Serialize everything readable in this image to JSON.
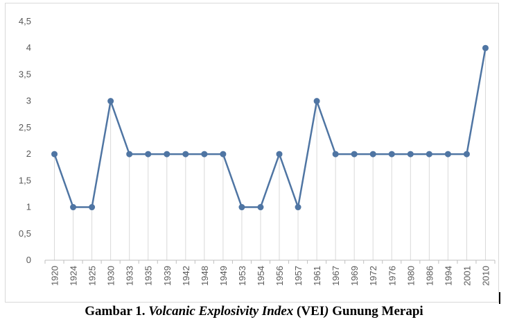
{
  "caption": {
    "label": "Gambar 1.",
    "title_italic": "Volcanic Explosivity Index",
    "title_paren_open": " (",
    "abbr": "VEI",
    "title_paren_close": ")",
    "subject": " Gunung Merapi"
  },
  "chart_data": {
    "type": "line",
    "categories": [
      "1920",
      "1924",
      "1925",
      "1930",
      "1933",
      "1935",
      "1939",
      "1942",
      "1948",
      "1949",
      "1953",
      "1954",
      "1956",
      "1957",
      "1961",
      "1967",
      "1969",
      "1972",
      "1976",
      "1980",
      "1986",
      "1994",
      "2001",
      "2010"
    ],
    "series": [
      {
        "values": [
          2,
          1,
          1,
          3,
          2,
          2,
          2,
          2,
          2,
          2,
          1,
          1,
          2,
          1,
          3,
          2,
          2,
          2,
          2,
          2,
          2,
          2,
          2,
          4
        ]
      }
    ],
    "y_ticks": [
      "0",
      "0,5",
      "1",
      "1,5",
      "2",
      "2,5",
      "3",
      "3,5",
      "4",
      "4,5"
    ],
    "ylim": [
      0,
      4.5
    ],
    "y_step": 0.5,
    "xlabel": "",
    "ylabel": "",
    "title": "",
    "grid": "vertical drop lines per category",
    "legend": "none",
    "colors": {
      "line": "#4f75a3",
      "marker": "#4f75a3",
      "axis": "#bfbfbf",
      "dropline": "#d9d9d9"
    }
  }
}
